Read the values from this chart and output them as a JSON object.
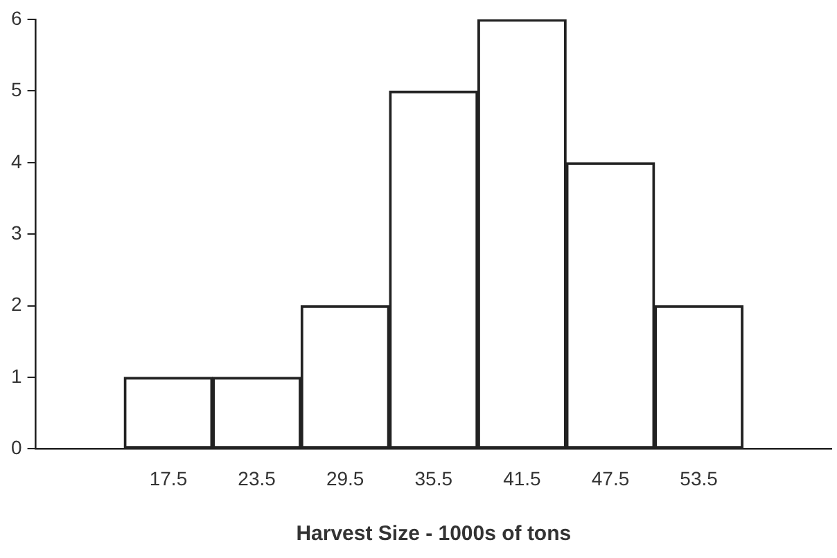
{
  "chart_data": {
    "type": "histogram",
    "xlabel": "Harvest Size - 1000s of tons",
    "bins": [
      14.5,
      20.5,
      26.5,
      32.5,
      38.5,
      44.5,
      50.5,
      56.5
    ],
    "values": [
      1,
      1,
      2,
      5,
      6,
      4,
      2
    ],
    "color": "#222222",
    "xlim": [
      8.5,
      62.5
    ],
    "xticks": [
      17.5,
      23.5,
      29.5,
      35.5,
      41.5,
      47.5,
      53.5
    ],
    "ylim": [
      0,
      6
    ],
    "yticks": [
      0,
      1,
      2,
      3,
      4,
      5,
      6
    ],
    "grid": false,
    "legend": false
  }
}
